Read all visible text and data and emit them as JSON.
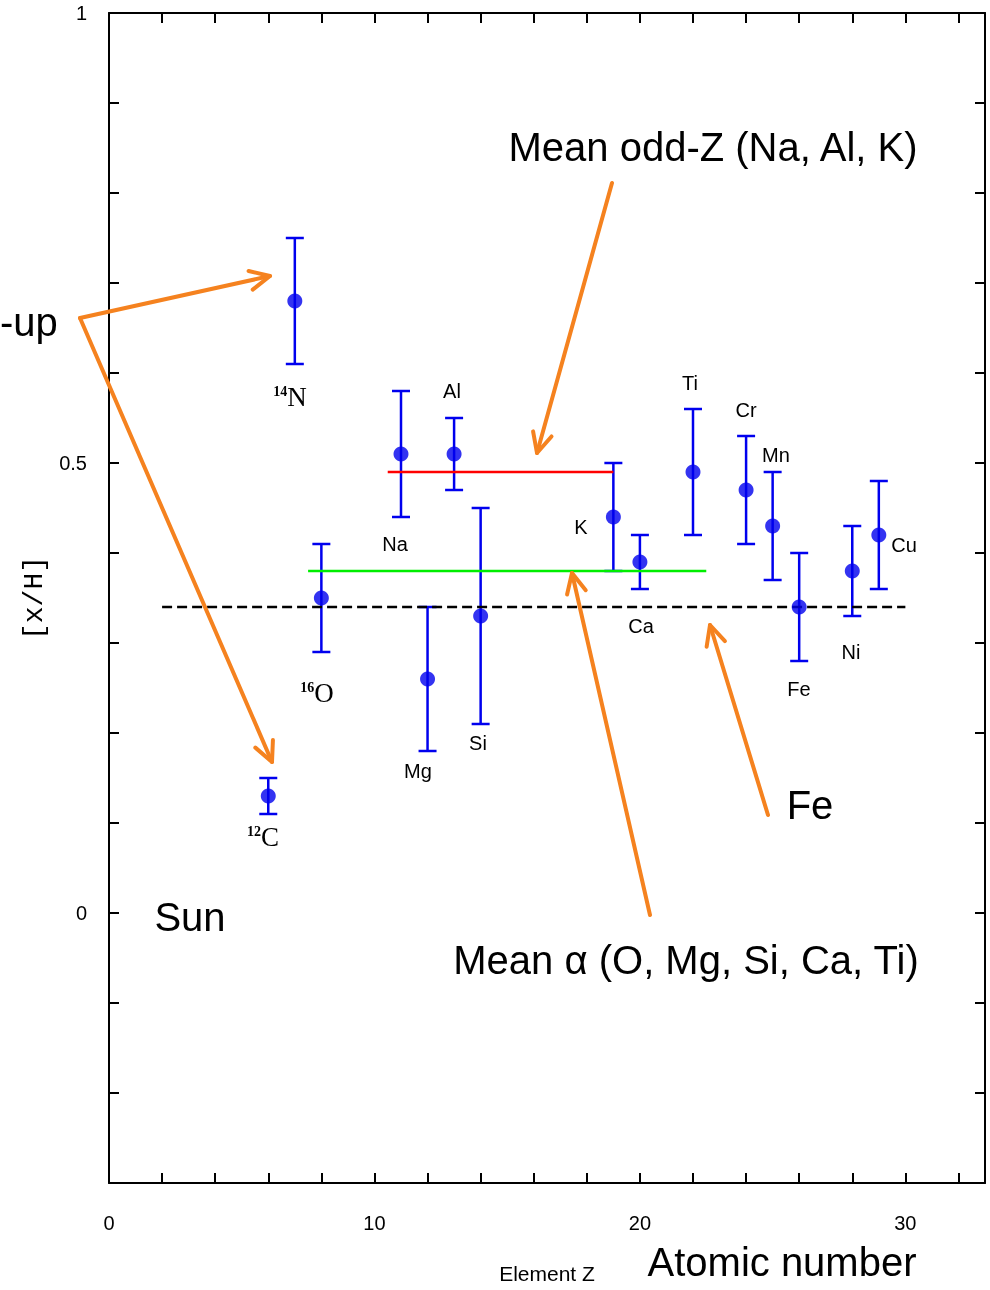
{
  "chart_data": {
    "type": "scatter",
    "xlabel": "Element Z",
    "ylabel": "[x/H]",
    "xlim": [
      0,
      33
    ],
    "ylim": [
      -0.3,
      1
    ],
    "xticks": [
      0,
      {
        "value": 2,
        "label": null
      },
      {
        "value": 4,
        "label": null
      },
      {
        "value": 6,
        "label": null
      },
      {
        "value": 8,
        "label": null
      },
      10,
      {
        "value": 12,
        "label": null
      },
      {
        "value": 14,
        "label": null
      },
      {
        "value": 16,
        "label": null
      },
      {
        "value": 18,
        "label": null
      },
      20,
      {
        "value": 22,
        "label": null
      },
      {
        "value": 24,
        "label": null
      },
      {
        "value": 26,
        "label": null
      },
      {
        "value": 28,
        "label": null
      },
      30,
      {
        "value": 32,
        "label": null
      }
    ],
    "yticks": [
      {
        "value": -0.2,
        "label": null
      },
      {
        "value": -0.1,
        "label": null
      },
      0,
      {
        "value": 0.1,
        "label": null
      },
      {
        "value": 0.2,
        "label": null
      },
      {
        "value": 0.3,
        "label": null
      },
      {
        "value": 0.4,
        "label": null
      },
      0.5,
      {
        "value": 0.6,
        "label": null
      },
      {
        "value": 0.7,
        "label": null
      },
      {
        "value": 0.8,
        "label": null
      },
      {
        "value": 0.9,
        "label": null
      },
      1
    ],
    "grid": false,
    "series": [
      {
        "color": "#0000ee",
        "marker": "circle",
        "x": [
          6,
          7,
          8,
          11,
          12,
          13,
          14,
          19,
          20,
          22,
          24,
          25,
          26,
          28,
          29
        ],
        "values": [
          0.13,
          0.68,
          0.35,
          0.51,
          0.26,
          0.51,
          0.33,
          0.44,
          0.39,
          0.49,
          0.47,
          0.43,
          0.34,
          0.38,
          0.42
        ],
        "errors": [
          0.02,
          0.07,
          0.06,
          0.07,
          0.08,
          0.04,
          0.12,
          0.06,
          0.03,
          0.07,
          0.06,
          0.06,
          0.06,
          0.05,
          0.06
        ]
      },
      {
        "type": "line",
        "color": "#ff0000",
        "line_style": "solid",
        "x": [
          10.5,
          19
        ],
        "values": [
          0.49,
          0.49
        ]
      },
      {
        "type": "line",
        "color": "#00ee00",
        "line_style": "solid",
        "x": [
          7.5,
          22.5
        ],
        "values": [
          0.38,
          0.38
        ]
      },
      {
        "type": "line",
        "color": "#000000",
        "line_style": "dashed",
        "x": [
          2,
          30
        ],
        "values": [
          0.34,
          0.34
        ]
      }
    ],
    "annotations": [
      "Mean odd-Z (Na, Al, K)",
      "Mean α (O, Mg, Si, Ca, Ti)",
      "Fe",
      "Sun",
      "-up",
      "Atomic number",
      "$^{12}$C",
      "$^{14}$N",
      "$^{16}$O",
      "Na",
      "Mg",
      "Al",
      "Si",
      "K",
      "Ca",
      "Ti",
      "Cr",
      "Mn",
      "Fe",
      "Ni",
      "Cu"
    ]
  }
}
